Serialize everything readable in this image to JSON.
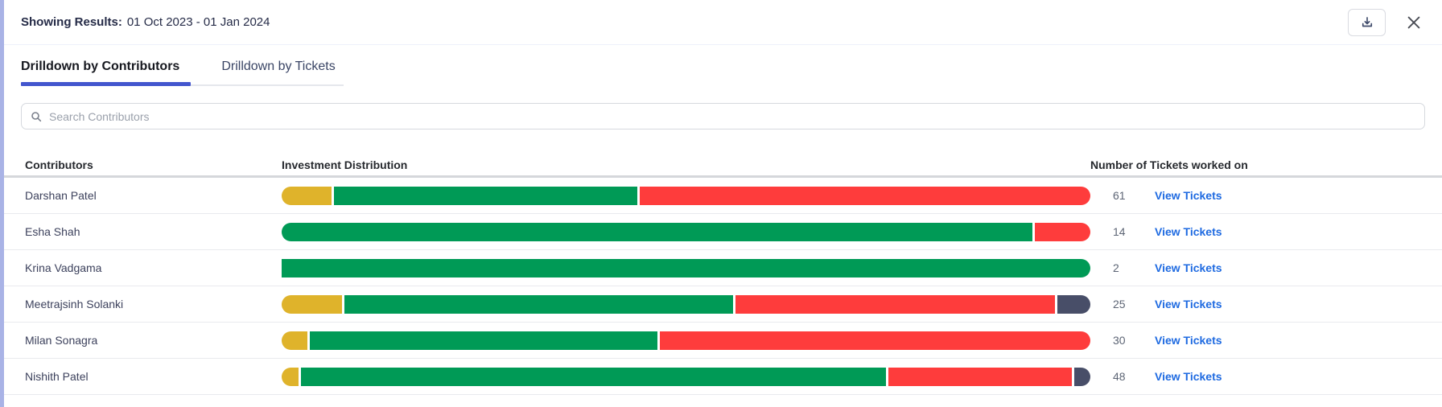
{
  "header": {
    "label": "Showing Results:",
    "value": "01 Oct 2023 - 01 Jan 2024"
  },
  "icons": {
    "download": "download-icon",
    "close": "close-icon",
    "search": "search-icon"
  },
  "tabs": [
    {
      "label": "Drilldown by Contributors",
      "active": true
    },
    {
      "label": "Drilldown by Tickets",
      "active": false
    }
  ],
  "search": {
    "placeholder": "Search Contributors"
  },
  "palette": {
    "yellow": "#dfb32b",
    "green": "#009a56",
    "red": "#fe3c3c",
    "dark": "#484e68",
    "accent": "#4356ce",
    "link": "#1e6ae1",
    "left_edge": "#a9b3e6"
  },
  "table": {
    "columns": [
      "Contributors",
      "Investment Distribution",
      "Number of Tickets worked on"
    ],
    "view_tickets_label": "View Tickets",
    "rows": [
      {
        "name": "Darshan Patel",
        "tickets": "61",
        "segments": [
          {
            "color": "yellow",
            "pct": 6.2
          },
          {
            "color": "green",
            "pct": 37.4
          },
          {
            "color": "red",
            "pct": 55.6
          }
        ]
      },
      {
        "name": "Esha Shah",
        "tickets": "14",
        "segments": [
          {
            "color": "green",
            "pct": 92.9
          },
          {
            "color": "red",
            "pct": 6.9
          }
        ]
      },
      {
        "name": "Krina Vadgama",
        "tickets": "2",
        "segments": [
          {
            "color": "green",
            "pct": 100
          }
        ]
      },
      {
        "name": "Meetrajsinh Solanki",
        "tickets": "25",
        "segments": [
          {
            "color": "yellow",
            "pct": 7.5
          },
          {
            "color": "green",
            "pct": 48.0
          },
          {
            "color": "red",
            "pct": 39.5
          },
          {
            "color": "dark",
            "pct": 4.1
          }
        ]
      },
      {
        "name": "Milan Sonagra",
        "tickets": "30",
        "segments": [
          {
            "color": "yellow",
            "pct": 3.2
          },
          {
            "color": "green",
            "pct": 43.0
          },
          {
            "color": "red",
            "pct": 53.2
          }
        ]
      },
      {
        "name": "Nishith Patel",
        "tickets": "48",
        "segments": [
          {
            "color": "yellow",
            "pct": 2.1
          },
          {
            "color": "green",
            "pct": 72.2
          },
          {
            "color": "red",
            "pct": 22.7
          },
          {
            "color": "dark",
            "pct": 2.0
          }
        ]
      }
    ]
  }
}
